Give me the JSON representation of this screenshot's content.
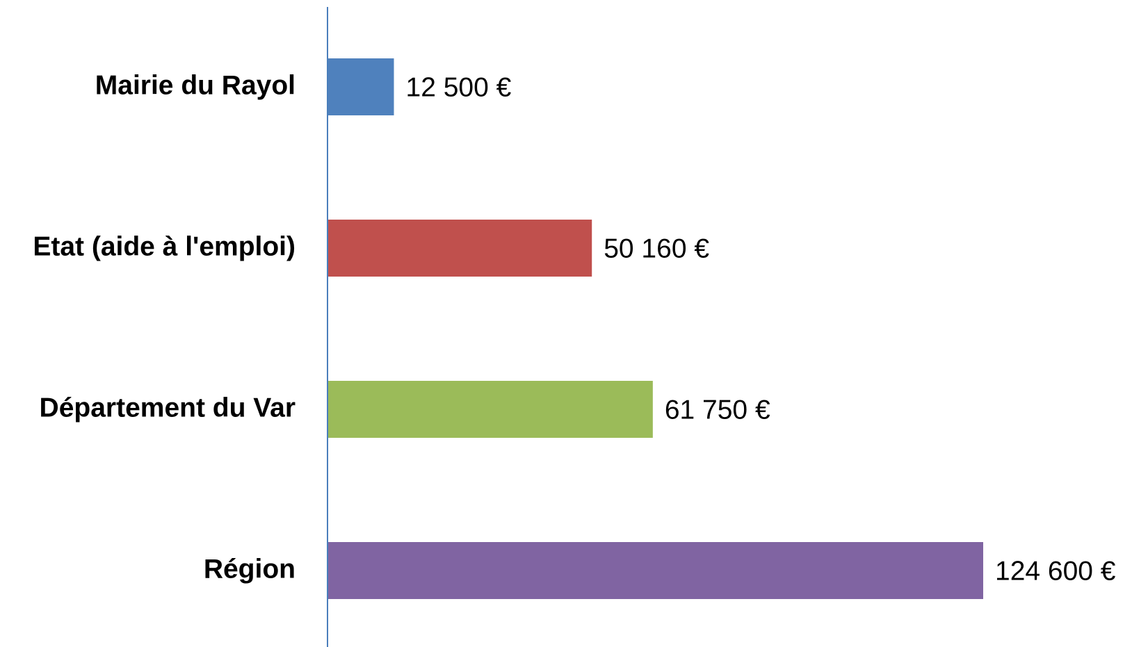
{
  "chart_data": {
    "type": "barh",
    "categories": [
      "Mairie du Rayol",
      "Etat (aide à l'emploi)",
      "Département du Var",
      "Région"
    ],
    "values": [
      12500,
      50160,
      61750,
      124600
    ],
    "value_labels": [
      "12 500 €",
      "50 160 €",
      "61 750 €",
      "124 600 €"
    ],
    "colors": [
      "#4f81bd",
      "#c0504d",
      "#9bbb59",
      "#8064a2"
    ]
  }
}
